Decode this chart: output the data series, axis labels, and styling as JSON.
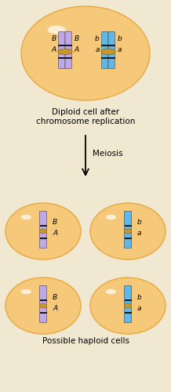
{
  "background_color": "#f0e8d0",
  "cell_fill": "#f5c87a",
  "cell_edge": "#e8a840",
  "chr_purple": "#c0a8e8",
  "chr_blue": "#60b8e8",
  "centromere_color": "#c8982a",
  "band_color": "#1a1a1a",
  "highlight_color": "#ffffff",
  "text_color": "#111111",
  "title1": "Diploid cell after",
  "title2": "chromosome replication",
  "meiosis": "Meiosis",
  "haploid": "Possible haploid cells",
  "fs_title": 7.5,
  "fs_label": 6.5,
  "fig_w": 2.18,
  "fig_h": 5.0,
  "dpi": 100
}
